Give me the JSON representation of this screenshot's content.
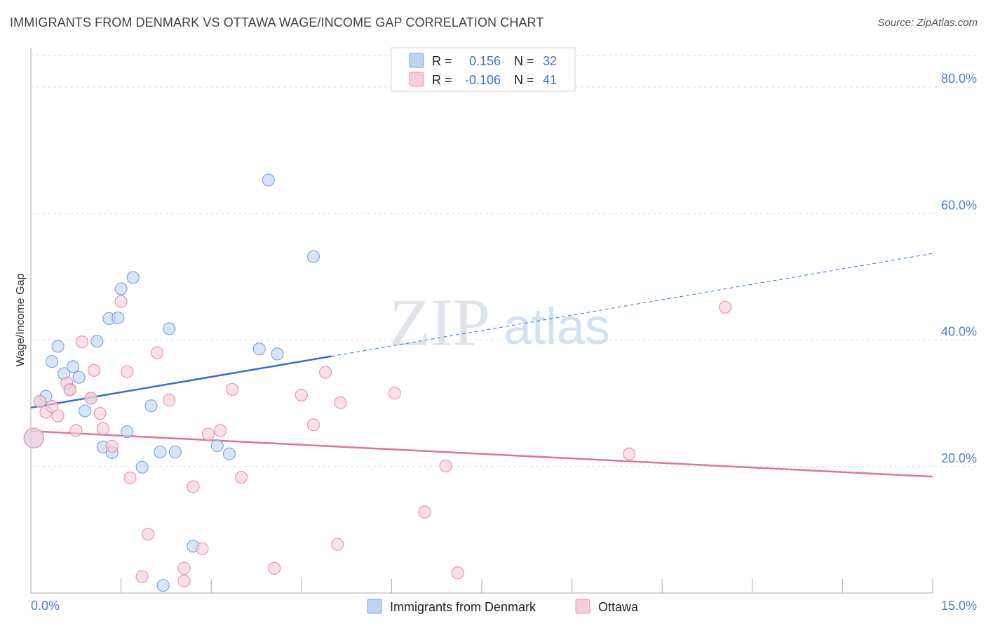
{
  "title": "IMMIGRANTS FROM DENMARK VS OTTAWA WAGE/INCOME GAP CORRELATION CHART",
  "source": "Source: ZipAtlas.com",
  "watermark": {
    "zip": "ZIP",
    "atlas": "atlas"
  },
  "colors": {
    "blue_fill": "#bcd4f4",
    "blue_stroke": "#7aa7dd",
    "blue_line": "#2f6fd0",
    "pink_fill": "#f8ccd9",
    "pink_stroke": "#e895b0",
    "pink_line": "#e0729a",
    "tick_text": "#4a7fcf",
    "grid": "#dcdcdc"
  },
  "legend_top": {
    "rows": [
      {
        "r_label": "R =",
        "r_value": "0.156",
        "n_label": "N =",
        "n_value": "32"
      },
      {
        "r_label": "R =",
        "r_value": "-0.106",
        "n_label": "N =",
        "n_value": "41"
      }
    ]
  },
  "legend_bottom": {
    "items": [
      "Immigrants from Denmark",
      "Ottawa"
    ]
  },
  "chart_data": {
    "type": "scatter",
    "title": "IMMIGRANTS FROM DENMARK VS OTTAWA WAGE/INCOME GAP CORRELATION CHART",
    "xlabel": "",
    "ylabel": "Wage/Income Gap",
    "xlim": [
      0,
      15
    ],
    "ylim": [
      0,
      85
    ],
    "x_tick_labels": [
      "0.0%",
      "15.0%"
    ],
    "y_ticks": [
      20,
      40,
      60,
      80
    ],
    "y_tick_labels": [
      "20.0%",
      "40.0%",
      "60.0%",
      "80.0%"
    ],
    "grid": "horizontal dashed",
    "legend": "top-center and bottom",
    "series": [
      {
        "name": "Immigrants from Denmark",
        "r": 0.156,
        "n": 32,
        "trend": {
          "x": [
            0,
            15
          ],
          "y": [
            29.3,
            53.7
          ],
          "solid_until_x": 5.0
        },
        "points": [
          [
            0.05,
            24.5
          ],
          [
            0.15,
            30.3
          ],
          [
            0.25,
            31.1
          ],
          [
            0.35,
            36.6
          ],
          [
            0.45,
            39.0
          ],
          [
            0.55,
            34.7
          ],
          [
            0.65,
            32.2
          ],
          [
            0.7,
            35.8
          ],
          [
            0.8,
            34.1
          ],
          [
            0.9,
            28.8
          ],
          [
            1.0,
            30.8
          ],
          [
            1.1,
            39.8
          ],
          [
            1.2,
            23.1
          ],
          [
            1.3,
            43.4
          ],
          [
            1.35,
            22.2
          ],
          [
            1.45,
            43.5
          ],
          [
            1.5,
            48.1
          ],
          [
            1.6,
            25.5
          ],
          [
            1.7,
            49.9
          ],
          [
            1.85,
            19.9
          ],
          [
            2.0,
            29.6
          ],
          [
            2.15,
            22.3
          ],
          [
            2.2,
            1.2
          ],
          [
            2.3,
            41.8
          ],
          [
            2.4,
            22.3
          ],
          [
            2.7,
            7.4
          ],
          [
            3.1,
            23.3
          ],
          [
            3.3,
            22.0
          ],
          [
            3.8,
            38.6
          ],
          [
            3.95,
            65.3
          ],
          [
            4.1,
            37.8
          ],
          [
            4.7,
            53.2
          ]
        ]
      },
      {
        "name": "Ottawa",
        "r": -0.106,
        "n": 41,
        "trend": {
          "x": [
            0,
            15
          ],
          "y": [
            25.6,
            18.4
          ]
        },
        "points": [
          [
            0.05,
            24.5
          ],
          [
            0.15,
            30.3
          ],
          [
            0.25,
            28.6
          ],
          [
            0.35,
            29.5
          ],
          [
            0.45,
            28.0
          ],
          [
            0.6,
            33.2
          ],
          [
            0.65,
            32.1
          ],
          [
            0.75,
            25.7
          ],
          [
            0.85,
            39.7
          ],
          [
            1.0,
            30.8
          ],
          [
            1.05,
            35.2
          ],
          [
            1.15,
            28.4
          ],
          [
            1.2,
            26.0
          ],
          [
            1.35,
            23.2
          ],
          [
            1.5,
            46.1
          ],
          [
            1.6,
            35.0
          ],
          [
            1.65,
            18.2
          ],
          [
            1.85,
            2.6
          ],
          [
            1.95,
            9.3
          ],
          [
            2.1,
            38.0
          ],
          [
            2.3,
            30.5
          ],
          [
            2.55,
            1.9
          ],
          [
            2.55,
            3.9
          ],
          [
            2.7,
            16.8
          ],
          [
            2.85,
            7.0
          ],
          [
            2.95,
            25.1
          ],
          [
            3.15,
            25.7
          ],
          [
            3.35,
            32.2
          ],
          [
            3.5,
            18.3
          ],
          [
            4.05,
            3.9
          ],
          [
            4.5,
            31.3
          ],
          [
            4.7,
            26.6
          ],
          [
            4.9,
            34.9
          ],
          [
            5.1,
            7.7
          ],
          [
            5.15,
            30.1
          ],
          [
            6.05,
            31.6
          ],
          [
            6.55,
            12.8
          ],
          [
            6.9,
            20.1
          ],
          [
            7.1,
            3.2
          ],
          [
            9.95,
            22.0
          ],
          [
            11.55,
            45.2
          ]
        ]
      }
    ]
  }
}
